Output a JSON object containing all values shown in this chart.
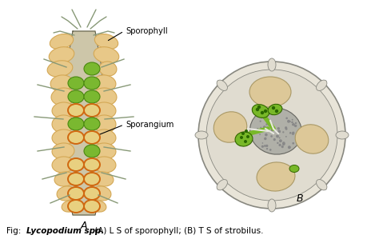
{
  "fig_caption": "Fig: ",
  "fig_caption_italic": "Lycopodium spp.",
  "fig_caption_rest": " (A) L S of sporophyll; (B) T S of strobilus.",
  "label_A": "A",
  "label_B": "B",
  "label_sporophyll": "Sporophyll",
  "label_sporangium": "Sporangium",
  "bg_color": "#ffffff",
  "stem_color_light": "#c8c0a0",
  "stem_color_dark": "#a09878",
  "sporophyll_tan": "#e8c888",
  "sporophyll_tan_dark": "#d4a855",
  "sporophyll_green": "#7ab830",
  "sporophyll_green_dark": "#4a8810",
  "sporangium_orange_ring": "#d06810",
  "sporangium_inner": "#e8d080",
  "spine_color": "#889977",
  "outline_color": "#555544",
  "cross_bg": "#ddd8c8",
  "cross_outer_ring": "#aaa898",
  "cross_tan": "#ddc898",
  "cross_gray": "#b0b0a8",
  "cross_green": "#78b828",
  "cross_green_dark": "#336600",
  "cross_white_line": "#e8e8e0"
}
